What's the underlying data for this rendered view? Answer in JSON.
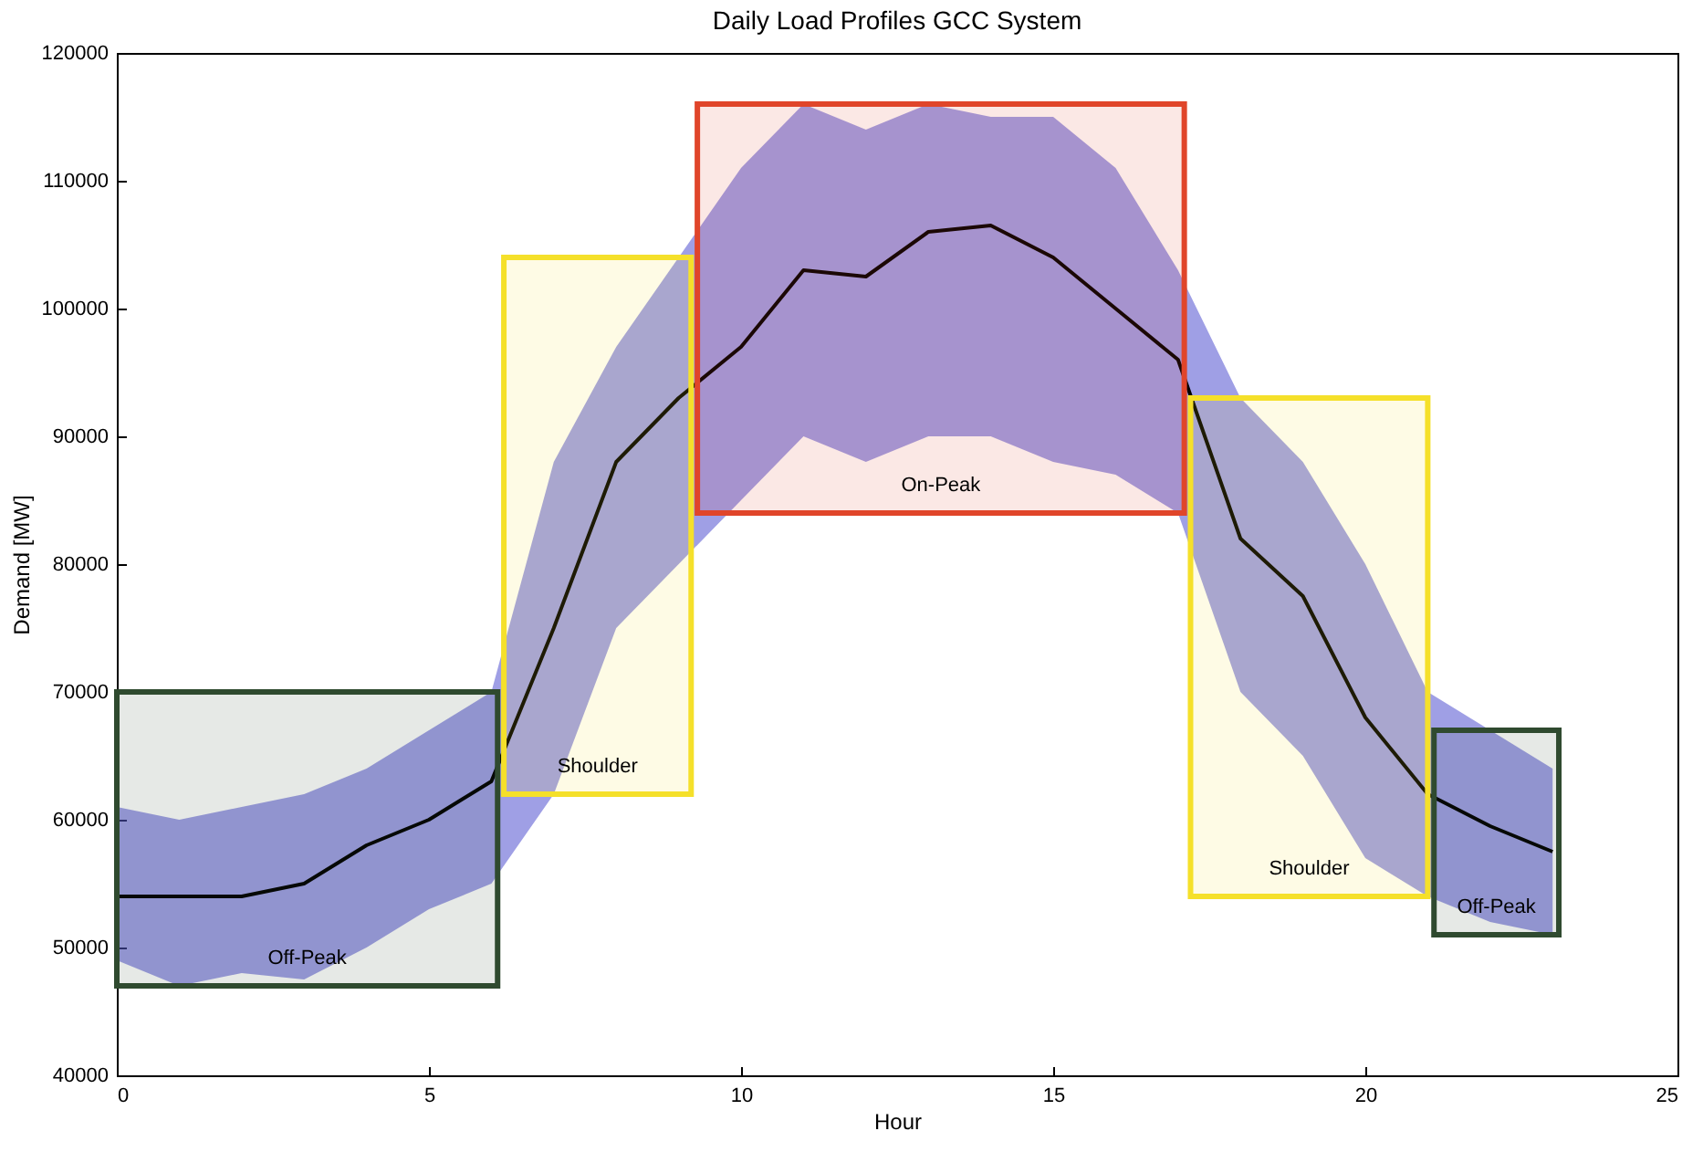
{
  "chart_data": {
    "type": "line",
    "title": "Daily Load Profiles GCC System",
    "xlabel": "Hour",
    "ylabel": "Demand [MW]",
    "x": [
      0,
      1,
      2,
      3,
      4,
      5,
      6,
      7,
      8,
      9,
      10,
      11,
      12,
      13,
      14,
      15,
      16,
      17,
      18,
      19,
      20,
      21,
      22,
      23
    ],
    "series": [
      {
        "color": "#000000",
        "values": [
          54000,
          54000,
          54000,
          55000,
          58000,
          60000,
          63000,
          75000,
          88000,
          93000,
          97000,
          103000,
          102500,
          106000,
          106500,
          104000,
          100000,
          96000,
          82000,
          77500,
          68000,
          62000,
          59500,
          57500
        ],
        "lower": [
          49000,
          47000,
          48000,
          47500,
          50000,
          53000,
          55000,
          62000,
          75000,
          80000,
          85000,
          90000,
          88000,
          90000,
          90000,
          88000,
          87000,
          84000,
          70000,
          65000,
          57000,
          54000,
          52000,
          51000
        ],
        "upper": [
          61000,
          60000,
          61000,
          62000,
          64000,
          67000,
          70000,
          88000,
          97000,
          104000,
          111000,
          116000,
          114000,
          116000,
          115000,
          115000,
          111000,
          103000,
          93000,
          88000,
          80000,
          70000,
          67000,
          64000
        ]
      }
    ],
    "bands": [
      {
        "axis": "x",
        "from": 0,
        "to": 6.1,
        "label": "Off-Peak",
        "color": "#2f4a2f"
      },
      {
        "axis": "x",
        "from": 6.2,
        "to": 9.2,
        "label": "Shoulder",
        "color": "#f5e02a"
      },
      {
        "axis": "x",
        "from": 9.3,
        "to": 17.1,
        "label": "On-Peak",
        "color": "#e0452a"
      },
      {
        "axis": "x",
        "from": 17.2,
        "to": 21,
        "label": "Shoulder",
        "color": "#f5e02a"
      },
      {
        "axis": "x",
        "from": 21.1,
        "to": 23.1,
        "label": "Off-Peak",
        "color": "#2f4a2f"
      }
    ],
    "xlim": [
      0,
      25
    ],
    "xticks": [
      0,
      5,
      10,
      15,
      20,
      25
    ],
    "ylim": [
      40000,
      120000
    ],
    "yticks": [
      40000,
      50000,
      60000,
      70000,
      80000,
      90000,
      100000,
      110000,
      120000
    ],
    "grid": false,
    "marker": "none",
    "line_style": "solid"
  }
}
